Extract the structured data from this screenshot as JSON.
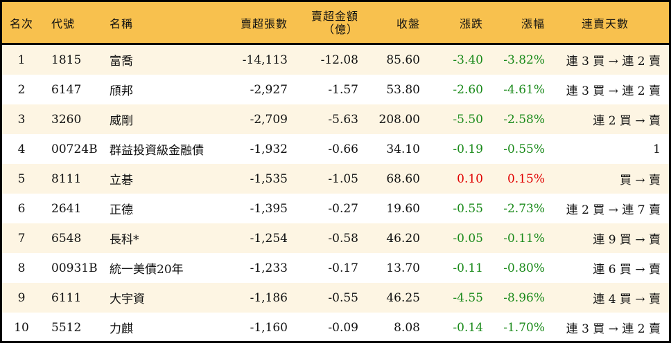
{
  "colors": {
    "header_bg": "#F8C14E",
    "alt_row_bg": "#FDF5E3",
    "down": "#1a8a1a",
    "up": "#e00000"
  },
  "headers": {
    "rank": "名次",
    "code": "代號",
    "name": "名稱",
    "net_sell_lots": "賣超張數",
    "net_sell_amount_line1": "賣超金額",
    "net_sell_amount_line2": "（億）",
    "close": "收盤",
    "change": "漲跌",
    "change_pct": "漲幅",
    "streak": "連賣天數"
  },
  "rows": [
    {
      "rank": "1",
      "code": "1815",
      "name": "富喬",
      "lots": "-14,113",
      "amount": "-12.08",
      "close": "85.60",
      "change": "-3.40",
      "pct": "-3.82%",
      "streak": "連 3 買 → 連 2 賣",
      "dir": "neg"
    },
    {
      "rank": "2",
      "code": "6147",
      "name": "頎邦",
      "lots": "-2,927",
      "amount": "-1.57",
      "close": "53.80",
      "change": "-2.60",
      "pct": "-4.61%",
      "streak": "連 3 買 → 連 2 賣",
      "dir": "neg"
    },
    {
      "rank": "3",
      "code": "3260",
      "name": "威剛",
      "lots": "-2,709",
      "amount": "-5.63",
      "close": "208.00",
      "change": "-5.50",
      "pct": "-2.58%",
      "streak": "連 2 買 → 賣",
      "dir": "neg"
    },
    {
      "rank": "4",
      "code": "00724B",
      "name": "群益投資級金融債",
      "lots": "-1,932",
      "amount": "-0.66",
      "close": "34.10",
      "change": "-0.19",
      "pct": "-0.55%",
      "streak": "1",
      "dir": "neg"
    },
    {
      "rank": "5",
      "code": "8111",
      "name": "立碁",
      "lots": "-1,535",
      "amount": "-1.05",
      "close": "68.60",
      "change": "0.10",
      "pct": "0.15%",
      "streak": "買 → 賣",
      "dir": "pos"
    },
    {
      "rank": "6",
      "code": "2641",
      "name": "正德",
      "lots": "-1,395",
      "amount": "-0.27",
      "close": "19.60",
      "change": "-0.55",
      "pct": "-2.73%",
      "streak": "連 2 買 → 連 7 賣",
      "dir": "neg"
    },
    {
      "rank": "7",
      "code": "6548",
      "name": "長科*",
      "lots": "-1,254",
      "amount": "-0.58",
      "close": "46.20",
      "change": "-0.05",
      "pct": "-0.11%",
      "streak": "連 9 買 → 賣",
      "dir": "neg"
    },
    {
      "rank": "8",
      "code": "00931B",
      "name": "統一美債20年",
      "lots": "-1,233",
      "amount": "-0.17",
      "close": "13.70",
      "change": "-0.11",
      "pct": "-0.80%",
      "streak": "連 6 買 → 賣",
      "dir": "neg"
    },
    {
      "rank": "9",
      "code": "6111",
      "name": "大宇資",
      "lots": "-1,186",
      "amount": "-0.55",
      "close": "46.25",
      "change": "-4.55",
      "pct": "-8.96%",
      "streak": "連 4 買 → 賣",
      "dir": "neg"
    },
    {
      "rank": "10",
      "code": "5512",
      "name": "力麒",
      "lots": "-1,160",
      "amount": "-0.09",
      "close": "8.08",
      "change": "-0.14",
      "pct": "-1.70%",
      "streak": "連 3 買 → 連 2 賣",
      "dir": "neg"
    }
  ]
}
